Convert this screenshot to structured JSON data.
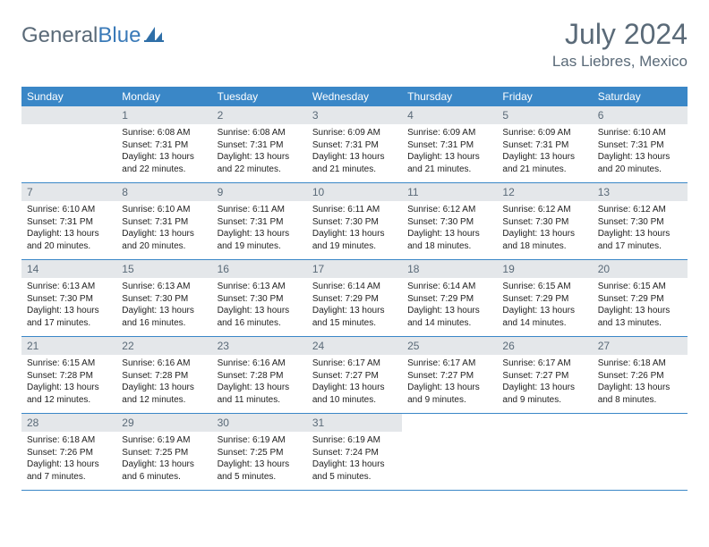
{
  "brand": {
    "part1": "General",
    "part2": "Blue"
  },
  "title": "July 2024",
  "location": "Las Liebres, Mexico",
  "colors": {
    "header_bg": "#3a87c7",
    "header_text": "#ffffff",
    "daynum_bg": "#e4e7ea",
    "daynum_text": "#5a6a78",
    "body_text": "#222222",
    "row_border": "#3a87c7",
    "brand_gray": "#5a6a78",
    "brand_blue": "#3a7ab8",
    "page_bg": "#ffffff"
  },
  "fonts": {
    "title_size_pt": 24,
    "location_size_pt": 13,
    "dayheader_size_pt": 9,
    "daynum_size_pt": 9,
    "body_size_pt": 7.5
  },
  "calendar": {
    "day_headers": [
      "Sunday",
      "Monday",
      "Tuesday",
      "Wednesday",
      "Thursday",
      "Friday",
      "Saturday"
    ],
    "start_weekday_index": 1,
    "days_in_month": 31,
    "cells": [
      {
        "day": 1,
        "sunrise": "6:08 AM",
        "sunset": "7:31 PM",
        "daylight": "13 hours and 22 minutes."
      },
      {
        "day": 2,
        "sunrise": "6:08 AM",
        "sunset": "7:31 PM",
        "daylight": "13 hours and 22 minutes."
      },
      {
        "day": 3,
        "sunrise": "6:09 AM",
        "sunset": "7:31 PM",
        "daylight": "13 hours and 21 minutes."
      },
      {
        "day": 4,
        "sunrise": "6:09 AM",
        "sunset": "7:31 PM",
        "daylight": "13 hours and 21 minutes."
      },
      {
        "day": 5,
        "sunrise": "6:09 AM",
        "sunset": "7:31 PM",
        "daylight": "13 hours and 21 minutes."
      },
      {
        "day": 6,
        "sunrise": "6:10 AM",
        "sunset": "7:31 PM",
        "daylight": "13 hours and 20 minutes."
      },
      {
        "day": 7,
        "sunrise": "6:10 AM",
        "sunset": "7:31 PM",
        "daylight": "13 hours and 20 minutes."
      },
      {
        "day": 8,
        "sunrise": "6:10 AM",
        "sunset": "7:31 PM",
        "daylight": "13 hours and 20 minutes."
      },
      {
        "day": 9,
        "sunrise": "6:11 AM",
        "sunset": "7:31 PM",
        "daylight": "13 hours and 19 minutes."
      },
      {
        "day": 10,
        "sunrise": "6:11 AM",
        "sunset": "7:30 PM",
        "daylight": "13 hours and 19 minutes."
      },
      {
        "day": 11,
        "sunrise": "6:12 AM",
        "sunset": "7:30 PM",
        "daylight": "13 hours and 18 minutes."
      },
      {
        "day": 12,
        "sunrise": "6:12 AM",
        "sunset": "7:30 PM",
        "daylight": "13 hours and 18 minutes."
      },
      {
        "day": 13,
        "sunrise": "6:12 AM",
        "sunset": "7:30 PM",
        "daylight": "13 hours and 17 minutes."
      },
      {
        "day": 14,
        "sunrise": "6:13 AM",
        "sunset": "7:30 PM",
        "daylight": "13 hours and 17 minutes."
      },
      {
        "day": 15,
        "sunrise": "6:13 AM",
        "sunset": "7:30 PM",
        "daylight": "13 hours and 16 minutes."
      },
      {
        "day": 16,
        "sunrise": "6:13 AM",
        "sunset": "7:30 PM",
        "daylight": "13 hours and 16 minutes."
      },
      {
        "day": 17,
        "sunrise": "6:14 AM",
        "sunset": "7:29 PM",
        "daylight": "13 hours and 15 minutes."
      },
      {
        "day": 18,
        "sunrise": "6:14 AM",
        "sunset": "7:29 PM",
        "daylight": "13 hours and 14 minutes."
      },
      {
        "day": 19,
        "sunrise": "6:15 AM",
        "sunset": "7:29 PM",
        "daylight": "13 hours and 14 minutes."
      },
      {
        "day": 20,
        "sunrise": "6:15 AM",
        "sunset": "7:29 PM",
        "daylight": "13 hours and 13 minutes."
      },
      {
        "day": 21,
        "sunrise": "6:15 AM",
        "sunset": "7:28 PM",
        "daylight": "13 hours and 12 minutes."
      },
      {
        "day": 22,
        "sunrise": "6:16 AM",
        "sunset": "7:28 PM",
        "daylight": "13 hours and 12 minutes."
      },
      {
        "day": 23,
        "sunrise": "6:16 AM",
        "sunset": "7:28 PM",
        "daylight": "13 hours and 11 minutes."
      },
      {
        "day": 24,
        "sunrise": "6:17 AM",
        "sunset": "7:27 PM",
        "daylight": "13 hours and 10 minutes."
      },
      {
        "day": 25,
        "sunrise": "6:17 AM",
        "sunset": "7:27 PM",
        "daylight": "13 hours and 9 minutes."
      },
      {
        "day": 26,
        "sunrise": "6:17 AM",
        "sunset": "7:27 PM",
        "daylight": "13 hours and 9 minutes."
      },
      {
        "day": 27,
        "sunrise": "6:18 AM",
        "sunset": "7:26 PM",
        "daylight": "13 hours and 8 minutes."
      },
      {
        "day": 28,
        "sunrise": "6:18 AM",
        "sunset": "7:26 PM",
        "daylight": "13 hours and 7 minutes."
      },
      {
        "day": 29,
        "sunrise": "6:19 AM",
        "sunset": "7:25 PM",
        "daylight": "13 hours and 6 minutes."
      },
      {
        "day": 30,
        "sunrise": "6:19 AM",
        "sunset": "7:25 PM",
        "daylight": "13 hours and 5 minutes."
      },
      {
        "day": 31,
        "sunrise": "6:19 AM",
        "sunset": "7:24 PM",
        "daylight": "13 hours and 5 minutes."
      }
    ],
    "labels": {
      "sunrise": "Sunrise:",
      "sunset": "Sunset:",
      "daylight": "Daylight:"
    }
  }
}
